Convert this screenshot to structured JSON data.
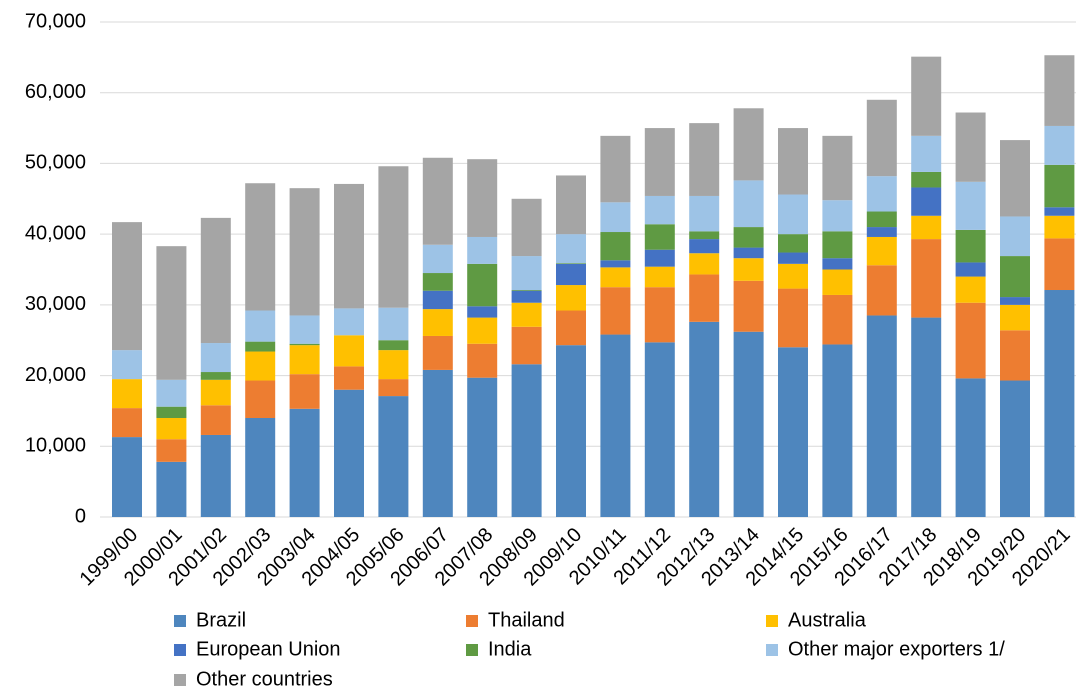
{
  "chart_data": {
    "type": "stacked_bar",
    "categories": [
      "1999/00",
      "2000/01",
      "2001/02",
      "2002/03",
      "2003/04",
      "2004/05",
      "2005/06",
      "2006/07",
      "2007/08",
      "2008/09",
      "2009/10",
      "2010/11",
      "2011/12",
      "2012/13",
      "2013/14",
      "2014/15",
      "2015/16",
      "2016/17",
      "2017/18",
      "2018/19",
      "2019/20",
      "2020/21"
    ],
    "series": [
      {
        "name": "Brazil",
        "color": "#4e86be",
        "values": [
          11300,
          7800,
          11600,
          14000,
          15300,
          18000,
          17100,
          20800,
          19700,
          21600,
          24300,
          25800,
          24700,
          27600,
          26200,
          24000,
          24400,
          28500,
          28200,
          19600,
          19300,
          32100
        ]
      },
      {
        "name": "Thailand",
        "color": "#ed7d31",
        "values": [
          4100,
          3200,
          4200,
          5300,
          4900,
          3300,
          2400,
          4800,
          4800,
          5300,
          4900,
          6700,
          7800,
          6700,
          7200,
          8300,
          7000,
          7100,
          11100,
          10700,
          7100,
          7300
        ]
      },
      {
        "name": "Australia",
        "color": "#ffc000",
        "values": [
          4100,
          3000,
          3600,
          4100,
          4100,
          4400,
          4100,
          3800,
          3700,
          3400,
          3600,
          2800,
          2900,
          3000,
          3200,
          3500,
          3600,
          4000,
          3300,
          3700,
          3600,
          3200
        ]
      },
      {
        "name": "European Union",
        "color": "#4472c4",
        "values": [
          0,
          0,
          0,
          0,
          0,
          0,
          0,
          2600,
          1600,
          1700,
          3000,
          1000,
          2400,
          2000,
          1500,
          1600,
          1600,
          1400,
          4000,
          2000,
          1100,
          1200
        ]
      },
      {
        "name": "India",
        "color": "#5f9a43",
        "values": [
          0,
          1600,
          1100,
          1400,
          200,
          0,
          1400,
          2500,
          6000,
          100,
          100,
          4000,
          3600,
          1100,
          2900,
          2600,
          3800,
          2200,
          2200,
          4600,
          5800,
          6000
        ]
      },
      {
        "name": "Other major exporters 1/",
        "color": "#9dc3e6",
        "values": [
          4100,
          3800,
          4100,
          4400,
          4000,
          3800,
          4600,
          4000,
          3800,
          4800,
          4100,
          4200,
          4000,
          5000,
          6600,
          5600,
          4400,
          5000,
          5100,
          6800,
          5600,
          5500
        ]
      },
      {
        "name": "Other countries",
        "color": "#a5a5a5",
        "values": [
          18100,
          18900,
          17700,
          18000,
          18000,
          17600,
          20000,
          12300,
          11000,
          8100,
          8300,
          9400,
          9600,
          10300,
          10200,
          9400,
          9100,
          10800,
          11200,
          9800,
          10800,
          10000
        ]
      }
    ],
    "ylim": [
      0,
      70000
    ],
    "yticks": [
      0,
      {
        "value": 10000,
        "label": "10,000"
      },
      {
        "value": 20000,
        "label": "20,000"
      },
      {
        "value": 30000,
        "label": "30,000"
      },
      {
        "value": 40000,
        "label": "40,000"
      },
      {
        "value": 50000,
        "label": "50,000"
      },
      {
        "value": 60000,
        "label": "60,000"
      },
      {
        "value": 70000,
        "label": "70,000"
      }
    ],
    "grid": true
  }
}
